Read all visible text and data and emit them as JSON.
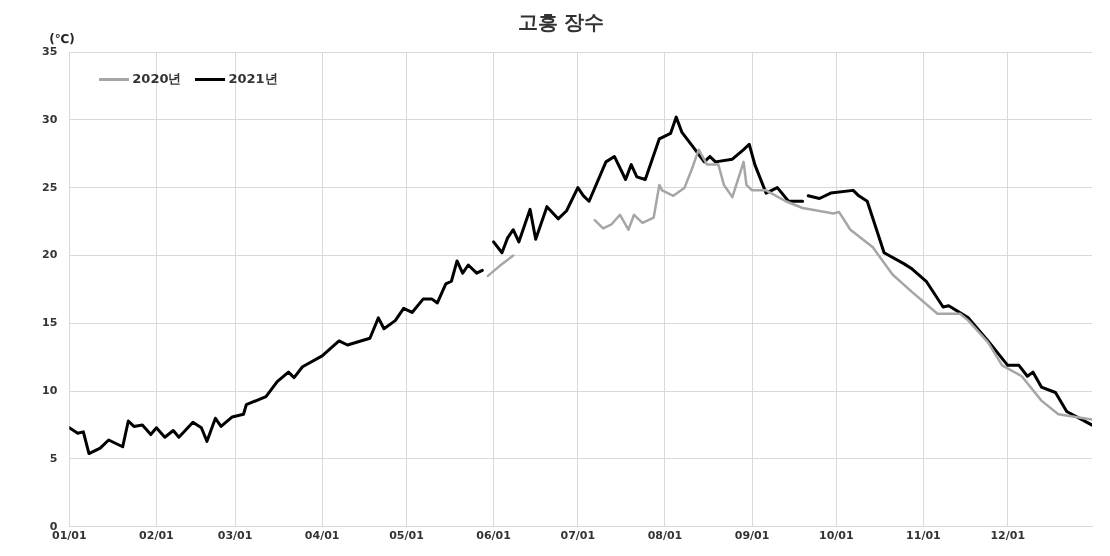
{
  "chart_data": {
    "type": "line",
    "title": "고흥 장수",
    "ylabel": "(℃)",
    "xlim": [
      "--01-01",
      "--12-31"
    ],
    "xticks": [
      {
        "value": "--01-01",
        "label": "01/01"
      },
      {
        "value": "--02-01",
        "label": "02/01"
      },
      {
        "value": "--03-01",
        "label": "03/01"
      },
      {
        "value": "--04-01",
        "label": "04/01"
      },
      {
        "value": "--05-01",
        "label": "05/01"
      },
      {
        "value": "--06-01",
        "label": "06/01"
      },
      {
        "value": "--07-01",
        "label": "07/01"
      },
      {
        "value": "--08-01",
        "label": "08/01"
      },
      {
        "value": "--09-01",
        "label": "09/01"
      },
      {
        "value": "--10-01",
        "label": "10/01"
      },
      {
        "value": "--11-01",
        "label": "11/01"
      },
      {
        "value": "--12-01",
        "label": "12/01"
      }
    ],
    "ylim": [
      0,
      35
    ],
    "yticks": [
      0,
      5,
      10,
      15,
      20,
      25,
      30,
      35
    ],
    "grid": true,
    "legend": "top left",
    "marker": "none",
    "line_style": "solid",
    "series": [
      {
        "name": "2020년",
        "color": "#a6a6a6",
        "x": [
          "--05-30",
          "--06-03",
          "--06-08",
          "--06-20",
          "--07-07",
          "--07-10",
          "--07-13",
          "--07-16",
          "--07-19",
          "--07-21",
          "--07-24",
          "--07-28",
          "--07-30",
          "--07-31",
          "--08-04",
          "--08-08",
          "--08-11",
          "--08-13",
          "--08-16",
          "--08-20",
          "--08-22",
          "--08-25",
          "--08-29",
          "--08-30",
          "--09-01",
          "--09-06",
          "--09-13",
          "--09-19",
          "--09-30",
          "--10-02",
          "--10-06",
          "--10-14",
          "--10-21",
          "--10-28",
          "--11-06",
          "--11-14",
          "--11-17",
          "--11-24",
          "--11-29",
          "--12-06",
          "--12-13",
          "--12-19",
          "--12-31"
        ],
        "values": [
          18.5,
          19.2,
          20.0,
          null,
          22.6,
          22.0,
          22.3,
          23.0,
          21.9,
          23.0,
          22.4,
          22.8,
          25.2,
          24.8,
          24.4,
          25.0,
          26.6,
          27.8,
          26.7,
          26.7,
          25.2,
          24.3,
          26.9,
          25.2,
          24.8,
          24.8,
          24.0,
          23.5,
          23.1,
          23.2,
          21.9,
          20.6,
          18.6,
          17.3,
          15.7,
          15.7,
          15.2,
          13.6,
          11.9,
          11.1,
          9.3,
          8.3,
          7.9
        ]
      },
      {
        "name": "2021년",
        "color": "#000000",
        "x": [
          "--01-01",
          "--01-04",
          "--01-06",
          "--01-08",
          "--01-12",
          "--01-15",
          "--01-20",
          "--01-22",
          "--01-24",
          "--01-27",
          "--01-30",
          "--02-01",
          "--02-04",
          "--02-07",
          "--02-09",
          "--02-14",
          "--02-17",
          "--02-19",
          "--02-22",
          "--02-24",
          "--02-28",
          "--03-04",
          "--03-05",
          "--03-12",
          "--03-16",
          "--03-20",
          "--03-22",
          "--03-25",
          "--04-01",
          "--04-07",
          "--04-10",
          "--04-18",
          "--04-21",
          "--04-23",
          "--04-27",
          "--04-30",
          "--05-03",
          "--05-07",
          "--05-10",
          "--05-12",
          "--05-15",
          "--05-17",
          "--05-19",
          "--05-21",
          "--05-23",
          "--05-26",
          "--05-28",
          "--05-30",
          "--06-01",
          "--06-04",
          "--06-06",
          "--06-08",
          "--06-10",
          "--06-14",
          "--06-16",
          "--06-20",
          "--06-24",
          "--06-27",
          "--07-01",
          "--07-03",
          "--07-05",
          "--07-11",
          "--07-14",
          "--07-18",
          "--07-20",
          "--07-22",
          "--07-25",
          "--07-30",
          "--08-03",
          "--08-05",
          "--08-07",
          "--08-11",
          "--08-15",
          "--08-17",
          "--08-19",
          "--08-25",
          "--08-29",
          "--08-31",
          "--09-02",
          "--09-06",
          "--09-10",
          "--09-14",
          "--09-19",
          "--09-20",
          "--09-21",
          "--09-25",
          "--09-29",
          "--10-07",
          "--10-09",
          "--10-12",
          "--10-18",
          "--10-25",
          "--10-28",
          "--11-02",
          "--11-08",
          "--11-10",
          "--11-17",
          "--11-24",
          "--12-01",
          "--12-05",
          "--12-08",
          "--12-10",
          "--12-13",
          "--12-18",
          "--12-22",
          "--12-31"
        ],
        "values": [
          7.3,
          6.9,
          7.0,
          5.4,
          5.8,
          6.4,
          5.9,
          7.8,
          7.4,
          7.5,
          6.8,
          7.3,
          6.6,
          7.1,
          6.6,
          7.7,
          7.3,
          6.3,
          8.0,
          7.4,
          8.1,
          8.3,
          9.0,
          9.6,
          10.7,
          11.4,
          11.0,
          11.8,
          12.6,
          13.7,
          13.4,
          13.9,
          15.4,
          14.6,
          15.2,
          16.1,
          15.8,
          16.8,
          16.8,
          16.5,
          17.9,
          18.1,
          19.6,
          18.7,
          19.3,
          18.7,
          18.9,
          null,
          21.0,
          20.2,
          21.3,
          21.9,
          21.0,
          23.4,
          21.2,
          23.6,
          22.7,
          23.3,
          25.0,
          24.4,
          24.0,
          26.9,
          27.3,
          25.6,
          26.7,
          25.8,
          25.6,
          28.6,
          29.0,
          30.2,
          29.1,
          28.0,
          26.9,
          27.3,
          26.9,
          27.1,
          27.8,
          28.2,
          26.7,
          24.6,
          25.0,
          24.0,
          24.0,
          null,
          24.4,
          24.2,
          24.6,
          24.8,
          24.4,
          24.0,
          20.2,
          19.4,
          19.0,
          18.1,
          16.2,
          16.3,
          15.4,
          13.7,
          11.9,
          11.9,
          11.1,
          11.4,
          10.3,
          9.9,
          8.5,
          7.5
        ]
      }
    ]
  }
}
